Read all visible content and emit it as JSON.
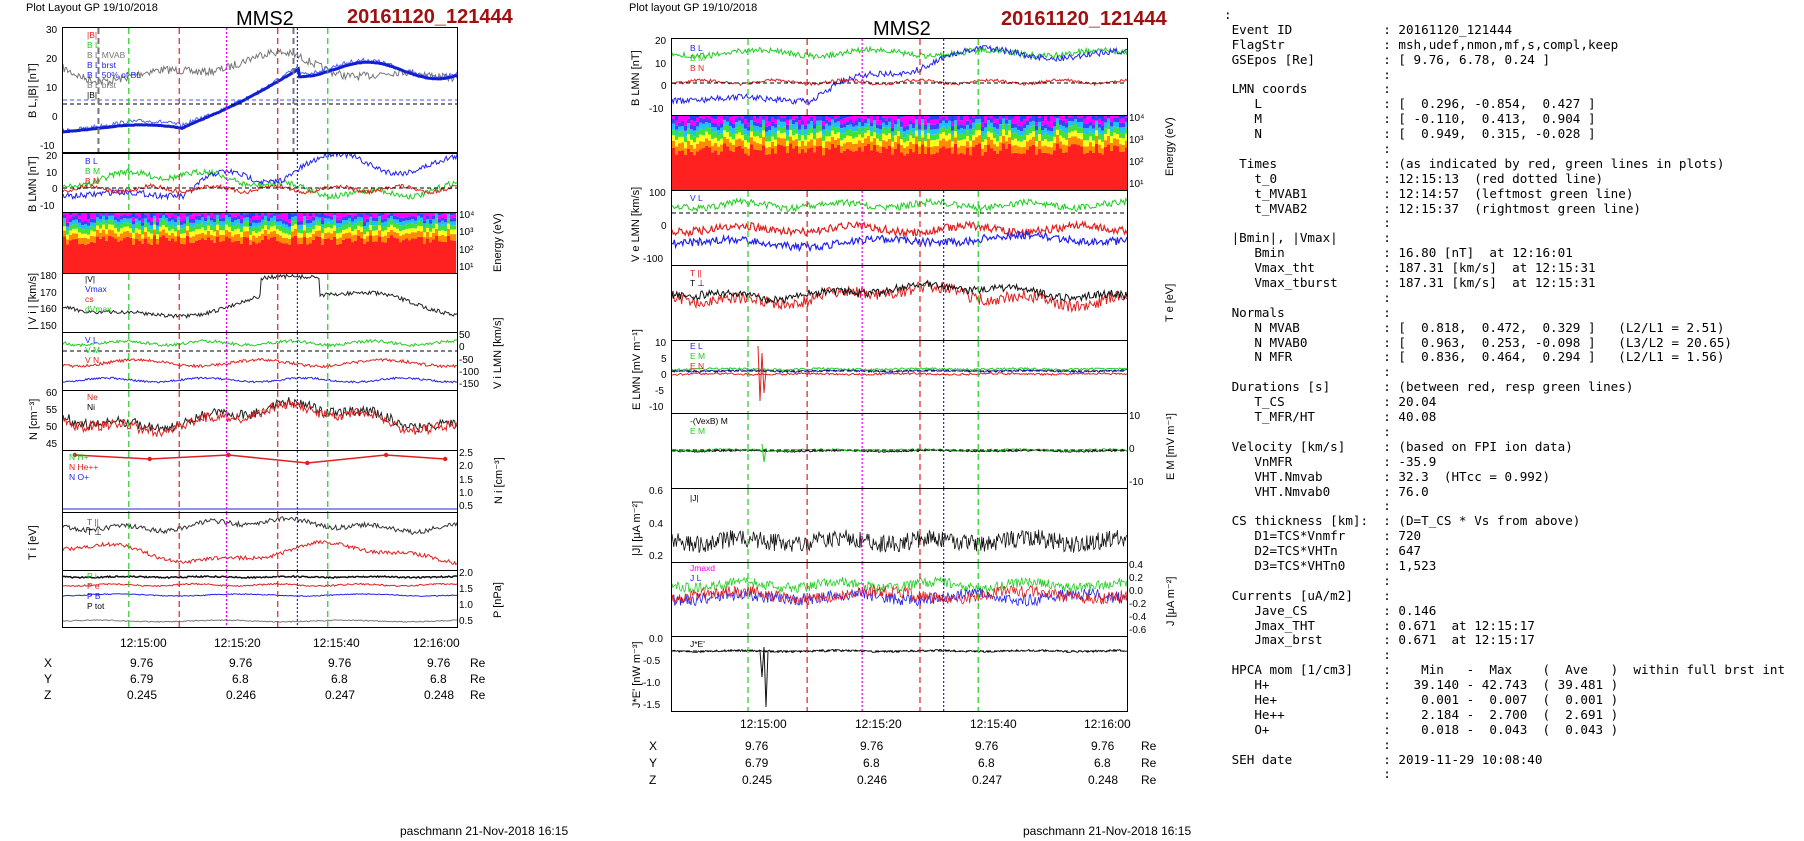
{
  "left_figure": {
    "header_left": "Plot Layout GP 19/10/2018",
    "title": "MMS2",
    "event_id": "20161120_121444",
    "footer": "paschmann 21-Nov-2018 16:15",
    "time_ticks": [
      "12:15:00",
      "12:15:20",
      "12:15:40",
      "12:16:00"
    ],
    "coords": {
      "rows": [
        {
          "name": "X",
          "values": [
            "9.76",
            "9.76",
            "9.76",
            "9.76"
          ],
          "unit": "Re"
        },
        {
          "name": "Y",
          "values": [
            "6.79",
            "6.8",
            "6.8",
            "6.8"
          ],
          "unit": "Re"
        },
        {
          "name": "Z",
          "values": [
            "0.245",
            "0.246",
            "0.247",
            "0.248"
          ],
          "unit": "Re"
        }
      ]
    },
    "panels": [
      {
        "id": "bl",
        "ylabel": "B L,|B| [nT]",
        "yticks": [
          "30",
          "20",
          "10",
          "0",
          "-10"
        ],
        "legend": [
          "|B|",
          "B L",
          "B L MVAB",
          "B L brst",
          "B L 50% of BL",
          "B L brst",
          "|B|"
        ]
      },
      {
        "id": "blmn",
        "ylabel": "B LMN [nT]",
        "yticks": [
          "20",
          "10",
          "0",
          "-10"
        ],
        "legend": [
          "B L",
          "B M",
          "B N"
        ]
      },
      {
        "id": "spec",
        "rlabel": "Energy (eV)",
        "rticks": [
          "10⁴",
          "10³",
          "10²",
          "10¹"
        ]
      },
      {
        "id": "vi",
        "ylabel": "| V i | [km/s]",
        "yticks": [
          "180",
          "170",
          "160",
          "150"
        ],
        "legend": [
          "|V|",
          "Vmax",
          "cs",
          "dVmax"
        ]
      },
      {
        "id": "vilmn",
        "rlabel": "V i LMN [km/s]",
        "rticks": [
          "50",
          "0",
          "-50",
          "-100",
          "-150"
        ],
        "legend": [
          "V L",
          "V M",
          "V N"
        ]
      },
      {
        "id": "n",
        "ylabel": "N [cm⁻³]",
        "yticks": [
          "60",
          "55",
          "50",
          "45"
        ],
        "legend": [
          "Ne",
          "Ni"
        ]
      },
      {
        "id": "hpca",
        "rlabel": "N i [cm⁻³]",
        "rticks": [
          "2.5",
          "2.0",
          "1.5",
          "1.0",
          "0.5"
        ],
        "legend": [
          "N H+",
          "N He++",
          "N O+"
        ]
      },
      {
        "id": "ti",
        "ylabel": "T i [eV]",
        "yticks": [],
        "legend": [
          "T ||",
          "T ⊥"
        ]
      },
      {
        "id": "p",
        "rlabel": "P [nPa]",
        "rticks": [
          "2.0",
          "1.5",
          "1.0",
          "0.5"
        ],
        "legend": [
          "P i",
          "P e",
          "P B",
          "P tot"
        ]
      }
    ]
  },
  "right_figure": {
    "header_left": "Plot layout GP 19/10/2018",
    "title": "MMS2",
    "event_id": "20161120_121444",
    "footer": "paschmann 21-Nov-2018 16:15",
    "time_ticks": [
      "12:15:00",
      "12:15:20",
      "12:15:40",
      "12:16:00"
    ],
    "coords": {
      "rows": [
        {
          "name": "X",
          "values": [
            "9.76",
            "9.76",
            "9.76",
            "9.76"
          ],
          "unit": "Re"
        },
        {
          "name": "Y",
          "values": [
            "6.79",
            "6.8",
            "6.8",
            "6.8"
          ],
          "unit": "Re"
        },
        {
          "name": "Z",
          "values": [
            "0.245",
            "0.246",
            "0.247",
            "0.248"
          ],
          "unit": "Re"
        }
      ]
    },
    "panels": [
      {
        "id": "blmn",
        "ylabel": "B LMN [nT]",
        "yticks": [
          "20",
          "10",
          "0",
          "-10"
        ],
        "legend": [
          "B L",
          "B M",
          "B N"
        ]
      },
      {
        "id": "spec",
        "rlabel": "Energy (eV)",
        "rticks": [
          "10⁴",
          "10³",
          "10²",
          "10¹"
        ]
      },
      {
        "id": "ve",
        "ylabel": "V e LMN [km/s]",
        "yticks": [
          "100",
          "0",
          "-100"
        ],
        "legend": [
          "V L"
        ]
      },
      {
        "id": "te",
        "rlabel": "T e [eV]",
        "legend": [
          "T ||",
          "T ⊥"
        ]
      },
      {
        "id": "e",
        "ylabel": "E LMN [mV m⁻¹]",
        "yticks": [
          "10",
          "5",
          "0",
          "-5",
          "-10"
        ],
        "legend": [
          "E L",
          "E M",
          "E N"
        ]
      },
      {
        "id": "em",
        "rlabel": "E M [mV m⁻¹]",
        "rticks": [
          "10",
          "0",
          "-10"
        ],
        "legend": [
          "-(VexB) M",
          "E M"
        ]
      },
      {
        "id": "j",
        "ylabel": "|J| [μA m⁻²]",
        "yticks": [
          "0.6",
          "0.4",
          "0.2"
        ],
        "legend": [
          "|J|"
        ]
      },
      {
        "id": "jlmn",
        "rlabel": "J [μA m⁻²]",
        "rticks": [
          "0.4",
          "0.2",
          "0.0",
          "-0.2",
          "-0.4",
          "-0.6"
        ],
        "legend": [
          "Jmaxd",
          "J L"
        ]
      },
      {
        "id": "je",
        "ylabel": "J*E' [nW m⁻³]",
        "yticks": [
          "0.0",
          "-0.5",
          "-1.0",
          "-1.5"
        ],
        "legend": [
          "J*E'"
        ]
      }
    ]
  },
  "summary": {
    "lines": [
      ":",
      " Event ID            : 20161120_121444",
      " FlagStr             : msh,udef,nmon,mf,s,compl,keep",
      " GSEpos [Re]         : [ 9.76, 6.78, 0.24 ]",
      "                     :",
      " LMN coords          :",
      "    L                : [  0.296, -0.854,  0.427 ]",
      "    M                : [ -0.110,  0.413,  0.904 ]",
      "    N                : [  0.949,  0.315, -0.028 ]",
      "                     :",
      "  Times              : (as indicated by red, green lines in plots)",
      "    t_0              : 12:15:13  (red dotted line)",
      "    t_MVAB1          : 12:14:57  (leftmost green line)",
      "    t_MVAB2          : 12:15:37  (rightmost green line)",
      "                     :",
      " |Bmin|, |Vmax|      :",
      "    Bmin             : 16.80 [nT]  at 12:16:01",
      "    Vmax_tht         : 187.31 [km/s]  at 12:15:31",
      "    Vmax_tburst      : 187.31 [km/s]  at 12:15:31",
      "                     :",
      " Normals             :",
      "    N MVAB           : [  0.818,  0.472,  0.329 ]   (L2/L1 = 2.51)",
      "    N MVAB0          : [  0.963,  0.253, -0.098 ]   (L3/L2 = 20.65)",
      "    N MFR            : [  0.836,  0.464,  0.294 ]   (L2/L1 = 1.56)",
      "                     :",
      " Durations [s]       : (between red, resp green lines)",
      "    T_CS             : 20.04",
      "    T_MFR/HT         : 40.08",
      "                     :",
      " Velocity [km/s]     : (based on FPI ion data)",
      "    VnMFR            : -35.9",
      "    VHT.Nmvab        : 32.3  (HTcc = 0.992)",
      "    VHT.Nmvab0       : 76.0",
      "                     :",
      " CS thickness [km]:  : (D=T_CS * Vs from above)",
      "    D1=TCS*Vnmfr     : 720",
      "    D2=TCS*VHTn      : 647",
      "    D3=TCS*VHTn0     : 1,523",
      "                     :",
      " Currents [uA/m2]    :",
      "    Jave_CS          : 0.146",
      "    Jmax_THT         : 0.671  at 12:15:17",
      "    Jmax_brst        : 0.671  at 12:15:17",
      "                     :",
      " HPCA mom [1/cm3]    :    Min   -  Max    (  Ave   )  within full brst int",
      "    H+               :   39.140 - 42.743  ( 39.481 )",
      "    He+              :    0.001 -  0.007  (  0.001 )",
      "    He++             :    2.184 -  2.700  (  2.691 )",
      "    O+               :    0.018 -  0.043  (  0.043 )",
      "                     :",
      " SEH date            : 2019-11-29 10:08:40",
      "                     :"
    ]
  },
  "colors": {
    "red": "#e02020",
    "green": "#22cc22",
    "blue": "#2222ee",
    "magenta": "#ee00ee",
    "black": "#000000",
    "gray": "#777777",
    "title_red": "#a01010"
  }
}
